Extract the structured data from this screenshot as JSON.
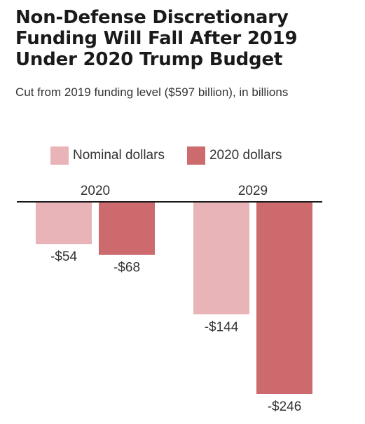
{
  "title": "Non-Defense Discretionary\nFunding Will Fall After 2019\nUnder 2020 Trump Budget",
  "subtitle": "Cut from 2019 funding level ($597 billion), in billions",
  "chart_data": {
    "type": "bar",
    "title": "Non-Defense Discretionary Funding Will Fall After 2019 Under 2020 Trump Budget",
    "subtitle": "Cut from 2019 funding level ($597 billion), in billions",
    "categories": [
      "2020",
      "2029"
    ],
    "series": [
      {
        "name": "Nominal dollars",
        "values": [
          -54,
          -144
        ],
        "labels": [
          "-$54",
          "-$144"
        ],
        "color": "#e8b4b8"
      },
      {
        "name": "2020 dollars",
        "values": [
          -68,
          -246
        ],
        "labels": [
          "-$68",
          "-$246"
        ],
        "color": "#cc6a6e"
      }
    ],
    "ylim": [
      -246,
      0
    ],
    "legend_position": "top",
    "grid": false,
    "axis_color": "#1a1a1a"
  }
}
